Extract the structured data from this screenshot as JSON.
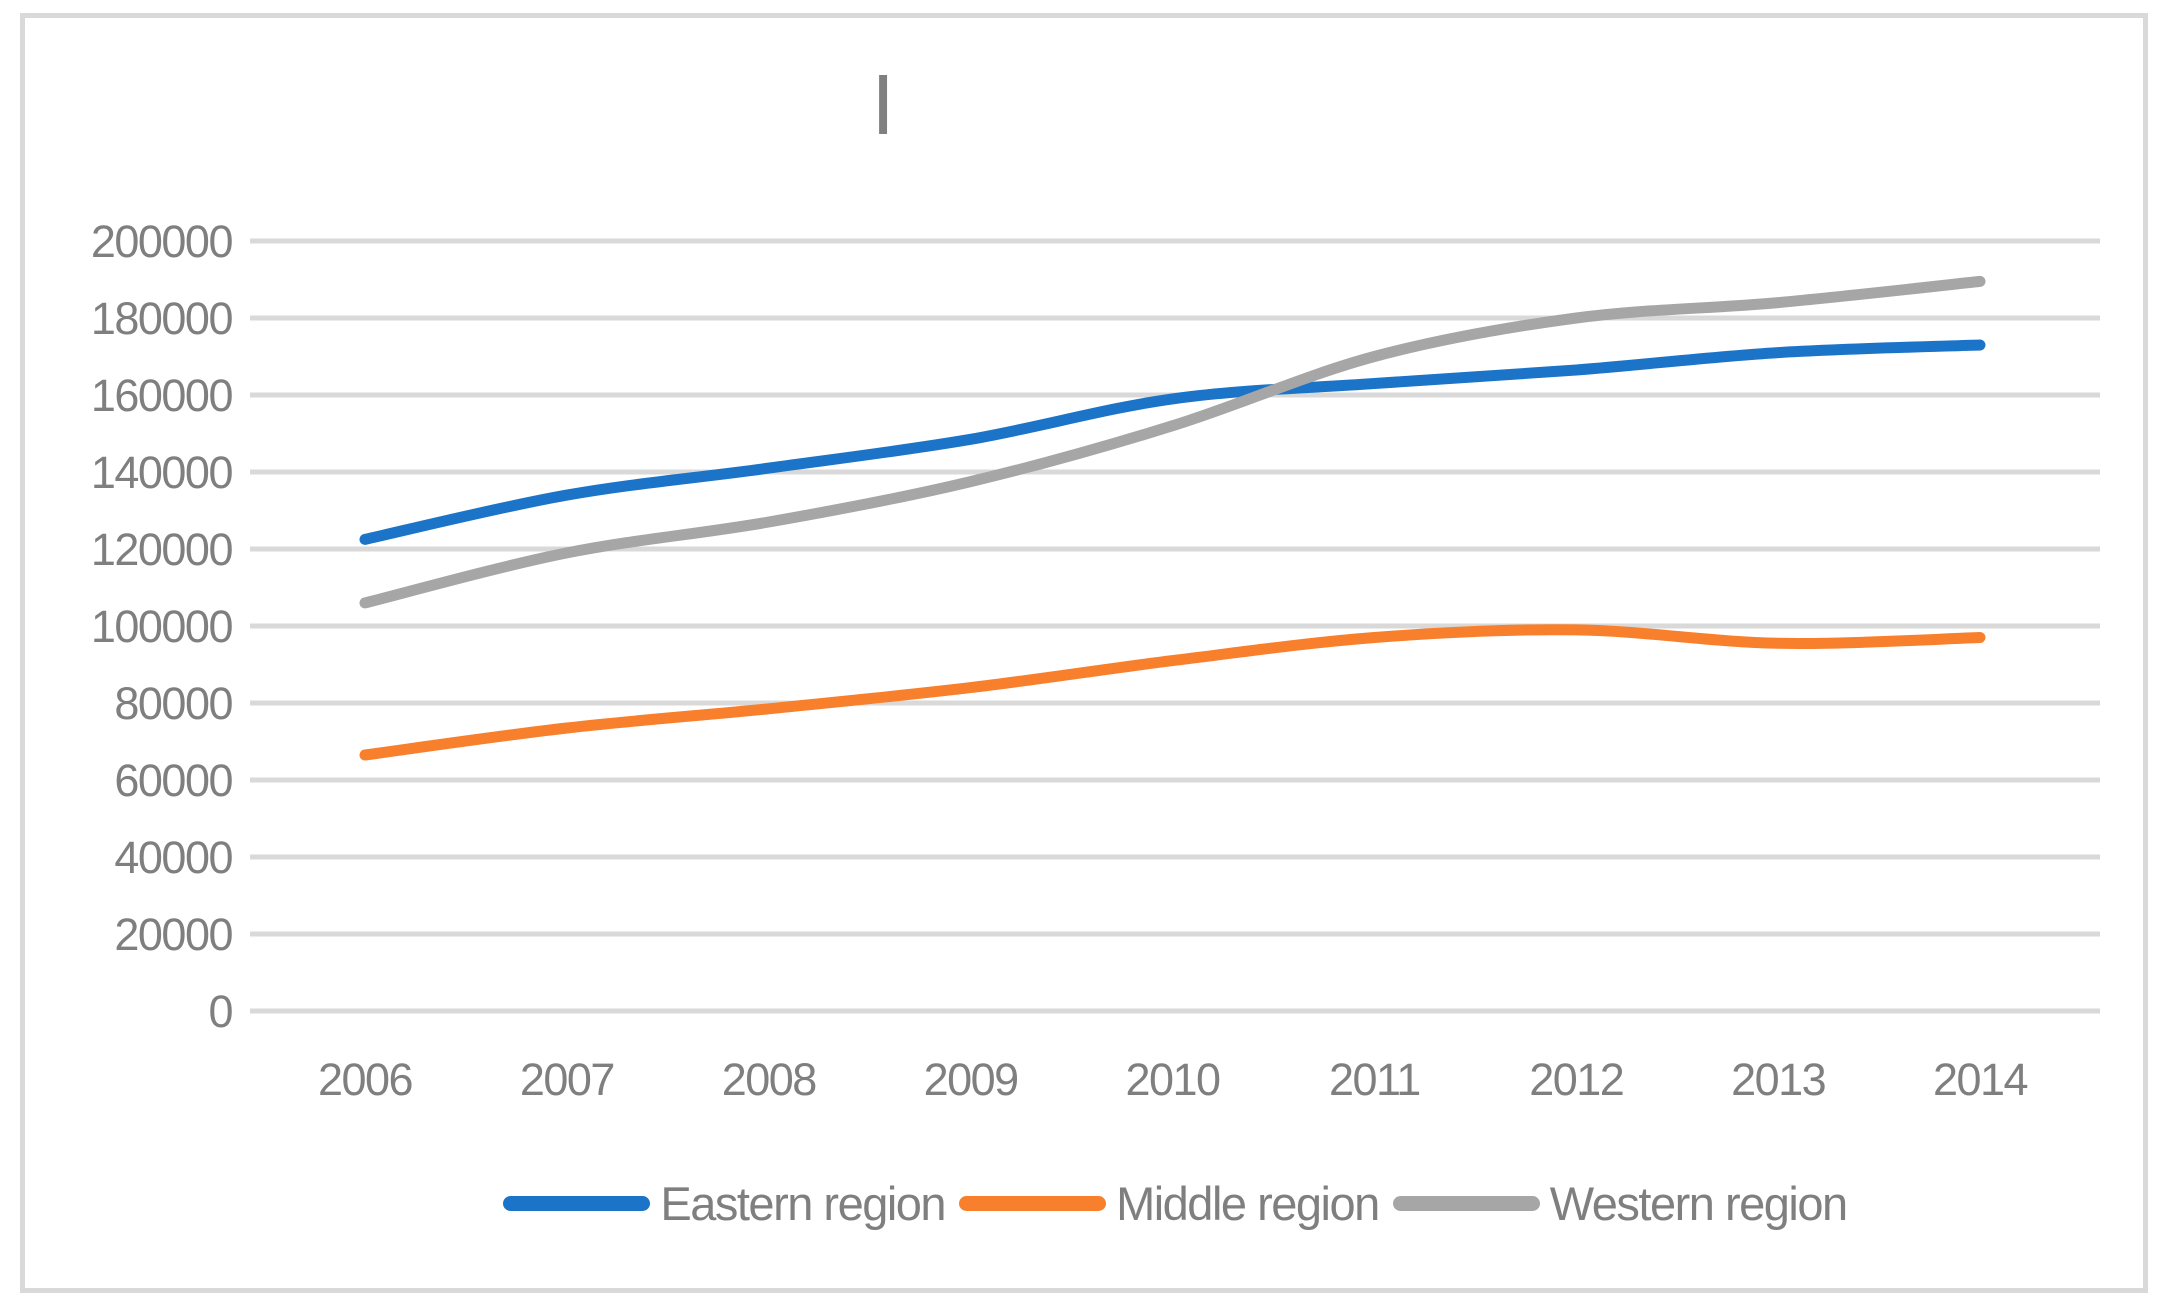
{
  "title_mark": "|",
  "colors": {
    "gridline": "#D9D9D9",
    "frame_border": "#D9D9D9",
    "tick_label": "#7F7F7F",
    "eastern": "#1B74C8",
    "middle": "#F87F2C",
    "western": "#A6A6A6"
  },
  "chart_data": {
    "type": "line",
    "title": "|",
    "categories": [
      "2006",
      "2007",
      "2008",
      "2009",
      "2010",
      "2011",
      "2012",
      "2013",
      "2014"
    ],
    "series": [
      {
        "name": "Eastern region",
        "color": "#1B74C8",
        "values": [
          122500,
          134000,
          141000,
          148500,
          159000,
          163000,
          166500,
          171000,
          173000
        ]
      },
      {
        "name": "Middle region",
        "color": "#F87F2C",
        "values": [
          66500,
          73500,
          78500,
          84000,
          91000,
          97000,
          99000,
          95500,
          97000
        ]
      },
      {
        "name": "Western region",
        "color": "#A6A6A6",
        "values": [
          106000,
          119000,
          127000,
          137500,
          152000,
          170000,
          180000,
          184000,
          189500
        ]
      }
    ],
    "xlabel": "",
    "ylabel": "",
    "ylim": [
      0,
      200000
    ],
    "ytick_step": 20000,
    "yticks": [
      "0",
      "20000",
      "40000",
      "60000",
      "80000",
      "100000",
      "120000",
      "140000",
      "160000",
      "180000",
      "200000"
    ],
    "grid": true,
    "legend_position": "bottom"
  },
  "legend": {
    "items": [
      {
        "label": "Eastern region"
      },
      {
        "label": "Middle region"
      },
      {
        "label": "Western region"
      }
    ]
  }
}
